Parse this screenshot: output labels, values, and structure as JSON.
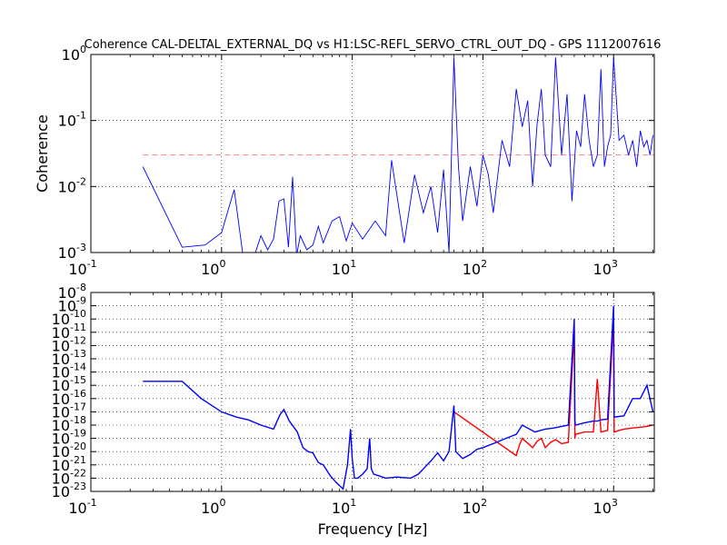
{
  "chart_data": [
    {
      "type": "line",
      "title": "Coherence CAL-DELTAL_EXTERNAL_DQ vs H1:LSC-REFL_SERVO_CTRL_OUT_DQ - GPS 1112007616",
      "xlabel": "",
      "ylabel": "Coherence",
      "xscale": "log",
      "yscale": "log",
      "xlim": [
        0.1,
        2048
      ],
      "ylim": [
        0.001,
        1
      ],
      "grid": true,
      "x_tick_labels": [
        {
          "base": "10",
          "exp": "-1"
        },
        {
          "base": "10",
          "exp": "0"
        },
        {
          "base": "10",
          "exp": "1"
        },
        {
          "base": "10",
          "exp": "2"
        },
        {
          "base": "10",
          "exp": "3"
        }
      ],
      "y_tick_labels": [
        {
          "base": "10",
          "exp": "-3"
        },
        {
          "base": "10",
          "exp": "-2"
        },
        {
          "base": "10",
          "exp": "-1"
        },
        {
          "base": "10",
          "exp": "0"
        }
      ],
      "threshold": {
        "y": 0.03,
        "color": "#ff8080",
        "style": "dashed"
      },
      "series": [
        {
          "color": "#0000ff",
          "x": [
            0.25,
            0.5,
            0.75,
            1.0,
            1.25,
            1.5,
            1.75,
            2.0,
            2.25,
            2.5,
            2.75,
            3.0,
            3.25,
            3.5,
            3.75,
            4.0,
            4.5,
            5.0,
            5.5,
            6.0,
            7.0,
            8.0,
            9.0,
            10,
            12,
            15,
            18,
            20,
            25,
            30,
            35,
            40,
            45,
            50,
            55,
            60,
            65,
            70,
            80,
            90,
            100,
            110,
            120,
            140,
            160,
            180,
            200,
            220,
            240,
            260,
            280,
            300,
            330,
            360,
            400,
            440,
            480,
            520,
            560,
            600,
            650,
            700,
            750,
            800,
            850,
            900,
            950,
            1000,
            1100,
            1200,
            1300,
            1400,
            1500,
            1600,
            1700,
            1800,
            1900,
            2000
          ],
          "y": [
            0.02,
            0.0012,
            0.0013,
            0.002,
            0.009,
            0.0006,
            0.0008,
            0.0018,
            0.0011,
            0.0016,
            0.006,
            0.0065,
            0.0012,
            0.014,
            0.0009,
            0.0018,
            0.0011,
            0.0013,
            0.0025,
            0.0014,
            0.003,
            0.0035,
            0.0015,
            0.0028,
            0.0016,
            0.003,
            0.0018,
            0.025,
            0.0014,
            0.015,
            0.004,
            0.01,
            0.002,
            0.018,
            0.001,
            0.9,
            0.02,
            0.003,
            0.02,
            0.005,
            0.03,
            0.015,
            0.004,
            0.05,
            0.02,
            0.3,
            0.08,
            0.2,
            0.01,
            0.09,
            0.3,
            0.03,
            0.02,
            0.9,
            0.03,
            0.25,
            0.006,
            0.07,
            0.04,
            0.25,
            0.05,
            0.02,
            0.03,
            0.6,
            0.02,
            0.04,
            0.06,
            0.9,
            0.05,
            0.06,
            0.03,
            0.05,
            0.02,
            0.07,
            0.04,
            0.05,
            0.03,
            0.06
          ]
        }
      ]
    },
    {
      "type": "line",
      "title": "",
      "xlabel": "Frequency [Hz]",
      "ylabel": "",
      "xscale": "log",
      "yscale": "log",
      "xlim": [
        0.1,
        2048
      ],
      "ylim": [
        1e-23,
        1e-08
      ],
      "grid": true,
      "x_tick_labels": [
        {
          "base": "10",
          "exp": "-1"
        },
        {
          "base": "10",
          "exp": "0"
        },
        {
          "base": "10",
          "exp": "1"
        },
        {
          "base": "10",
          "exp": "2"
        },
        {
          "base": "10",
          "exp": "3"
        }
      ],
      "y_tick_labels": [
        {
          "base": "10",
          "exp": "-23"
        },
        {
          "base": "10",
          "exp": "-22"
        },
        {
          "base": "10",
          "exp": "-21"
        },
        {
          "base": "10",
          "exp": "-20"
        },
        {
          "base": "10",
          "exp": "-19"
        },
        {
          "base": "10",
          "exp": "-18"
        },
        {
          "base": "10",
          "exp": "-17"
        },
        {
          "base": "10",
          "exp": "-16"
        },
        {
          "base": "10",
          "exp": "-15"
        },
        {
          "base": "10",
          "exp": "-14"
        },
        {
          "base": "10",
          "exp": "-13"
        },
        {
          "base": "10",
          "exp": "-12"
        },
        {
          "base": "10",
          "exp": "-11"
        },
        {
          "base": "10",
          "exp": "-10"
        },
        {
          "base": "10",
          "exp": "-9"
        },
        {
          "base": "10",
          "exp": "-8"
        }
      ],
      "series": [
        {
          "color": "#ff0000",
          "x": [
            60,
            180,
            190,
            200,
            240,
            260,
            280,
            300,
            330,
            360,
            400,
            450,
            500,
            505,
            510,
            600,
            700,
            750,
            800,
            900,
            1000,
            1010,
            1100,
            1200,
            1400,
            1600,
            1800,
            2000
          ],
          "y": [
            1e-17,
            5e-21,
            3e-20,
            1e-19,
            2e-20,
            6e-20,
            1e-19,
            2e-20,
            5e-20,
            8e-20,
            4e-20,
            5e-20,
            1.5e-11,
            1e-19,
            2e-19,
            3e-19,
            3e-19,
            3e-15,
            3e-19,
            4e-19,
            1e-10,
            3e-19,
            4e-19,
            5e-19,
            6e-19,
            7e-19,
            8e-19,
            1e-18
          ]
        },
        {
          "color": "#0000ff",
          "x": [
            0.25,
            0.5,
            0.7,
            1.0,
            1.3,
            1.6,
            2.0,
            2.5,
            2.8,
            3.0,
            3.3,
            3.8,
            4.2,
            4.6,
            5.0,
            5.5,
            6.0,
            6.8,
            7.5,
            8.5,
            9.2,
            9.7,
            10.0,
            10.4,
            11.0,
            12.0,
            13.0,
            13.6,
            14.0,
            14.6,
            16.0,
            18.0,
            22.0,
            28.0,
            32.0,
            35.0,
            40.0,
            45.0,
            50.0,
            55.0,
            60.0,
            62.0,
            70.0,
            80.0,
            90.0,
            100,
            120,
            150,
            180,
            200,
            250,
            300,
            350,
            400,
            450,
            500,
            505,
            510,
            550,
            600,
            700,
            750,
            800,
            900,
            1000,
            1010,
            1100,
            1200,
            1400,
            1600,
            1800,
            2000
          ],
          "y": [
            2e-15,
            2e-15,
            1e-16,
            1e-17,
            4e-18,
            2.5e-18,
            1e-18,
            5e-19,
            6e-18,
            1.5e-17,
            2e-18,
            3e-19,
            2e-20,
            1e-20,
            8e-21,
            1.5e-21,
            1e-21,
            1.5e-22,
            5e-23,
            1.5e-23,
            1e-21,
            5e-19,
            3e-21,
            1e-22,
            1e-22,
            2e-22,
            5e-22,
            1e-19,
            5e-22,
            2e-22,
            1.5e-22,
            1e-22,
            1.2e-22,
            1e-22,
            2e-22,
            5e-22,
            2e-21,
            8e-21,
            2e-21,
            1e-20,
            3e-17,
            1e-20,
            3e-21,
            6e-21,
            1.5e-20,
            2e-20,
            4e-20,
            1e-19,
            2e-19,
            1e-18,
            3e-19,
            5e-19,
            6e-19,
            8e-19,
            1e-18,
            1e-10,
            2e-18,
            1e-18,
            1.2e-18,
            1.5e-18,
            2e-18,
            2e-18,
            2.5e-18,
            2.8e-18,
            1e-09,
            4e-18,
            4.5e-18,
            5e-18,
            1e-16,
            1e-16,
            1e-15,
            1e-17
          ]
        }
      ]
    }
  ]
}
